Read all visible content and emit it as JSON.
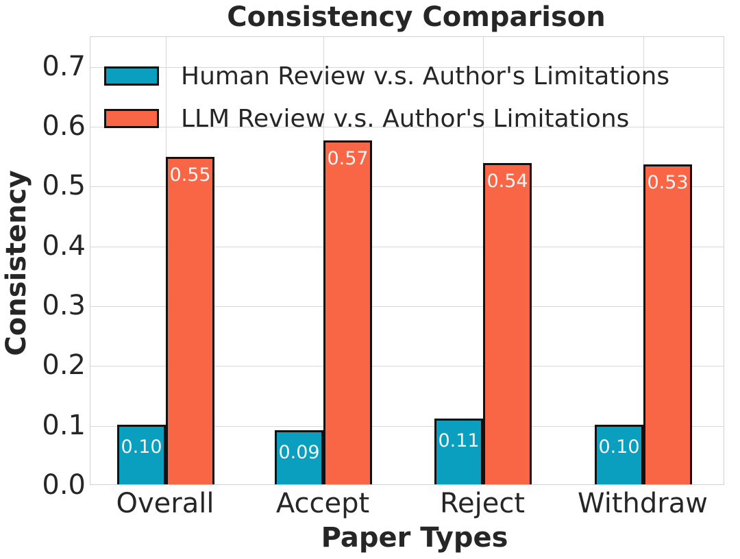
{
  "chart_data": {
    "type": "bar",
    "title": "Consistency Comparison",
    "xlabel": "Paper Types",
    "ylabel": "Consistency",
    "categories": [
      "Overall",
      "Accept",
      "Reject",
      "Withdraw"
    ],
    "series": [
      {
        "name": "Human Review v.s. Author's Limitations",
        "color": "#0a9ebf",
        "values": [
          0.1,
          0.09,
          0.11,
          0.1
        ],
        "labels": [
          "0.10",
          "0.09",
          "0.11",
          "0.10"
        ]
      },
      {
        "name": "LLM Review v.s. Author's Limitations",
        "color": "#f96646",
        "values": [
          0.547,
          0.575,
          0.537,
          0.535
        ],
        "labels": [
          "0.55",
          "0.57",
          "0.54",
          "0.53"
        ]
      }
    ],
    "yticks": [
      "0.0",
      "0.1",
      "0.2",
      "0.3",
      "0.4",
      "0.5",
      "0.6",
      "0.7"
    ],
    "ylim": [
      0,
      0.75
    ],
    "grid": true,
    "legend_position": "upper left"
  }
}
